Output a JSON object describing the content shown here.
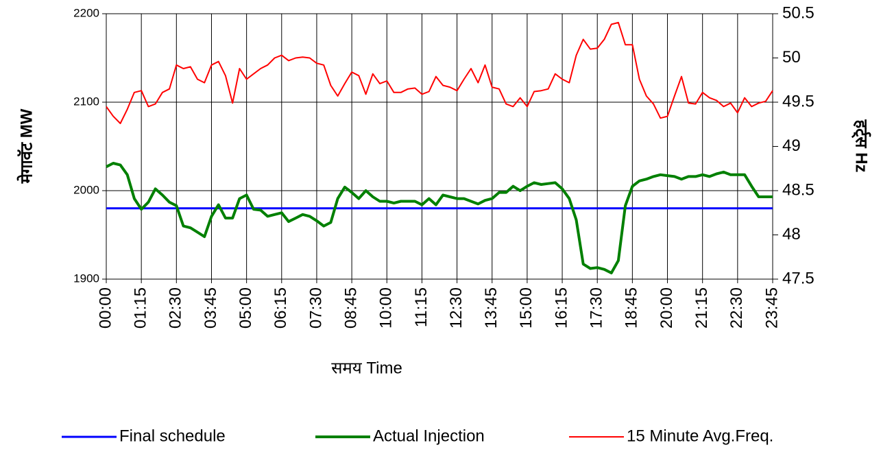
{
  "chart_data": {
    "type": "line",
    "x_label": "समय    Time",
    "y_label": "मेगावॅट  MW",
    "y2_label": "हर्ट्स  Hz",
    "categories": [
      "00:00",
      null,
      null,
      null,
      null,
      "01:15",
      null,
      null,
      null,
      null,
      "02:30",
      null,
      null,
      null,
      null,
      "03:45",
      null,
      null,
      null,
      null,
      "05:00",
      null,
      null,
      null,
      null,
      "06:15",
      null,
      null,
      null,
      null,
      "07:30",
      null,
      null,
      null,
      null,
      "08:45",
      null,
      null,
      null,
      null,
      "10:00",
      null,
      null,
      null,
      null,
      "11:15",
      null,
      null,
      null,
      null,
      "12:30",
      null,
      null,
      null,
      null,
      "13:45",
      null,
      null,
      null,
      null,
      "15:00",
      null,
      null,
      null,
      null,
      "16:15",
      null,
      null,
      null,
      null,
      "17:30",
      null,
      null,
      null,
      null,
      "18:45",
      null,
      null,
      null,
      null,
      "20:00",
      null,
      null,
      null,
      null,
      "21:15",
      null,
      null,
      null,
      null,
      "22:30",
      null,
      null,
      null,
      null,
      "23:45"
    ],
    "ylim": [
      1900,
      2200
    ],
    "yticks": [
      1900,
      2000,
      2100,
      2200
    ],
    "y2lim": [
      47.5,
      50.5
    ],
    "y2ticks": [
      47.5,
      48,
      48.5,
      49,
      49.5,
      50,
      50.5
    ],
    "grid": true,
    "legend": "bottom",
    "series": [
      {
        "name": "Final schedule",
        "color": "#0000ff",
        "values": [
          1980,
          1980,
          1980,
          1980,
          1980,
          1980,
          1980,
          1980,
          1980,
          1980,
          1980,
          1980,
          1980,
          1980,
          1980,
          1980,
          1980,
          1980,
          1980,
          1980,
          1980,
          1980,
          1980,
          1980,
          1980,
          1980,
          1980,
          1980,
          1980,
          1980,
          1980,
          1980,
          1980,
          1980,
          1980,
          1980,
          1980,
          1980,
          1980,
          1980,
          1980,
          1980,
          1980,
          1980,
          1980,
          1980,
          1980,
          1980,
          1980,
          1980,
          1980,
          1980,
          1980,
          1980,
          1980,
          1980,
          1980,
          1980,
          1980,
          1980,
          1980,
          1980,
          1980,
          1980,
          1980,
          1980,
          1980,
          1980,
          1980,
          1980,
          1980,
          1980,
          1980,
          1980,
          1980,
          1980,
          1980,
          1980,
          1980,
          1980,
          1980,
          1980,
          1980,
          1980,
          1980,
          1980,
          1980,
          1980,
          1980,
          1980,
          1980,
          1980,
          1980,
          1980,
          1980,
          1980
        ]
      },
      {
        "name": "Actual Injection",
        "color": "#008000",
        "values": [
          2027,
          2031,
          2029,
          2018,
          1991,
          1979,
          1987,
          2002,
          1995,
          1987,
          1983,
          1960,
          1958,
          1953,
          1948,
          1971,
          1984,
          1969,
          1969,
          1991,
          1995,
          1979,
          1978,
          1971,
          1973,
          1975,
          1965,
          1969,
          1973,
          1971,
          1966,
          1960,
          1964,
          1991,
          2004,
          1998,
          1991,
          2000,
          1993,
          1988,
          1988,
          1986,
          1988,
          1988,
          1988,
          1984,
          1991,
          1984,
          1995,
          1993,
          1991,
          1991,
          1988,
          1985,
          1989,
          1991,
          1998,
          1998,
          2005,
          2000,
          2005,
          2009,
          2007,
          2008,
          2009,
          2002,
          1991,
          1967,
          1917,
          1912,
          1913,
          1911,
          1907,
          1921,
          1983,
          2005,
          2011,
          2013,
          2016,
          2018,
          2017,
          2016,
          2013,
          2016,
          2016,
          2018,
          2016,
          2019,
          2021,
          2018,
          2018,
          2018,
          2005,
          1993,
          1993,
          1993
        ]
      },
      {
        "name": "15 Minute Avg.Freq.",
        "color": "#ff0000",
        "axis": "y2",
        "values": [
          49.45,
          49.34,
          49.26,
          49.42,
          49.61,
          49.63,
          49.45,
          49.48,
          49.61,
          49.65,
          49.92,
          49.88,
          49.9,
          49.76,
          49.72,
          49.92,
          49.96,
          49.8,
          49.49,
          49.88,
          49.76,
          49.82,
          49.88,
          49.92,
          50.0,
          50.03,
          49.97,
          50.0,
          50.01,
          50.0,
          49.94,
          49.92,
          49.69,
          49.57,
          49.71,
          49.84,
          49.8,
          49.59,
          49.82,
          49.71,
          49.74,
          49.61,
          49.61,
          49.65,
          49.66,
          49.59,
          49.62,
          49.79,
          49.69,
          49.67,
          49.63,
          49.76,
          49.88,
          49.72,
          49.92,
          49.67,
          49.65,
          49.48,
          49.45,
          49.55,
          49.45,
          49.62,
          49.63,
          49.65,
          49.82,
          49.76,
          49.72,
          50.03,
          50.21,
          50.1,
          50.11,
          50.21,
          50.38,
          50.4,
          50.15,
          50.15,
          49.76,
          49.57,
          49.48,
          49.32,
          49.34,
          49.57,
          49.79,
          49.49,
          49.48,
          49.61,
          49.55,
          49.52,
          49.45,
          49.49,
          49.38,
          49.55,
          49.45,
          49.49,
          49.51,
          49.63
        ]
      }
    ]
  }
}
